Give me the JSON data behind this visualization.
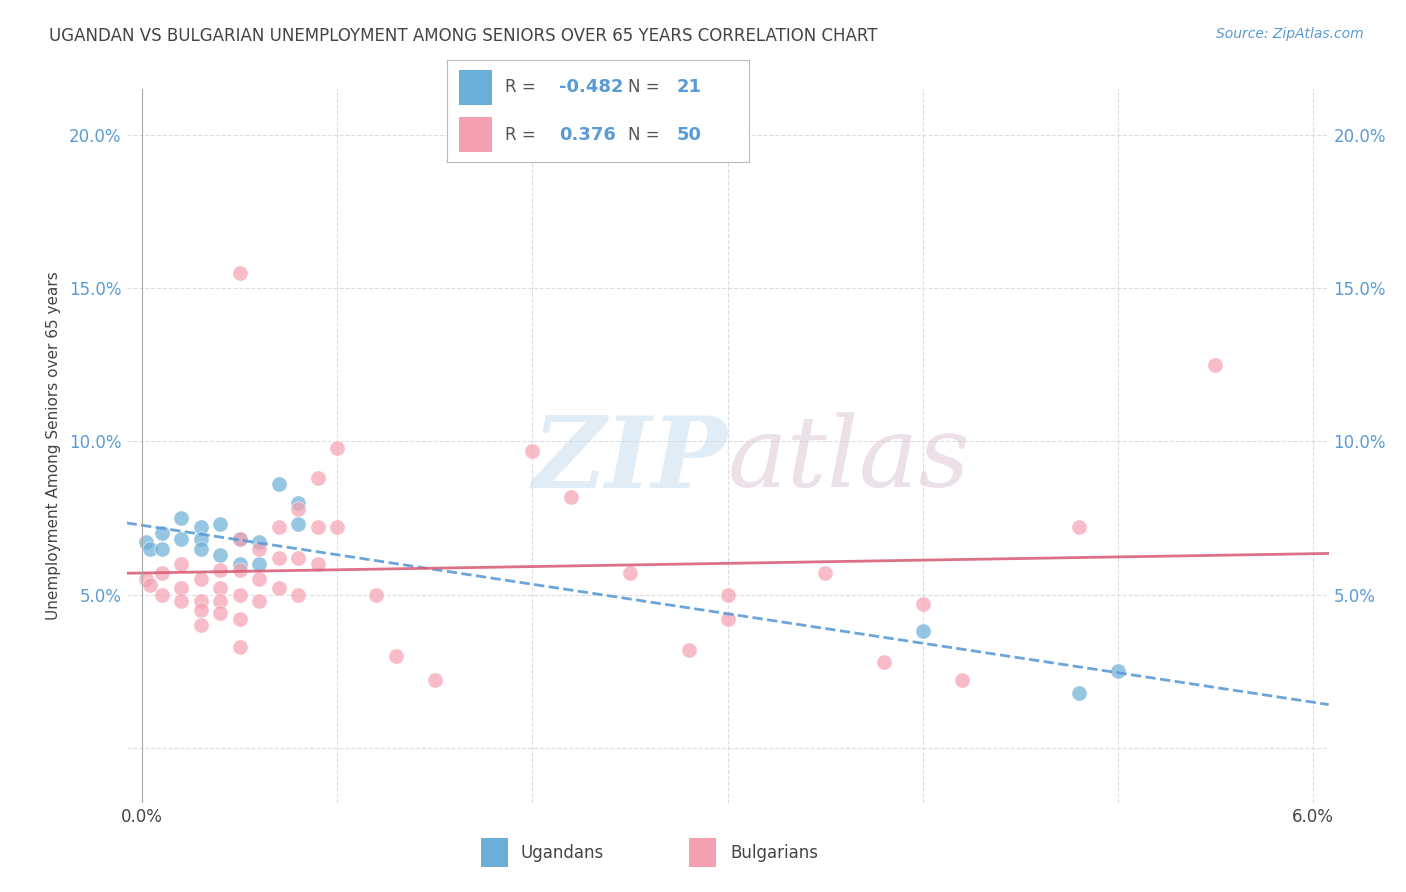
{
  "title": "UGANDAN VS BULGARIAN UNEMPLOYMENT AMONG SENIORS OVER 65 YEARS CORRELATION CHART",
  "source": "Source: ZipAtlas.com",
  "ylabel": "Unemployment Among Seniors over 65 years",
  "xlim": [
    -0.0008,
    0.0608
  ],
  "ylim": [
    -0.018,
    0.215
  ],
  "ugandan_color": "#6baed6",
  "bulgarian_color": "#f4a0b0",
  "ugandan_R": "-0.482",
  "ugandan_N": "21",
  "bulgarian_R": "0.376",
  "bulgarian_N": "50",
  "ugandan_points": [
    [
      0.0002,
      0.067
    ],
    [
      0.0004,
      0.065
    ],
    [
      0.001,
      0.07
    ],
    [
      0.001,
      0.065
    ],
    [
      0.002,
      0.068
    ],
    [
      0.002,
      0.075
    ],
    [
      0.003,
      0.072
    ],
    [
      0.003,
      0.068
    ],
    [
      0.003,
      0.065
    ],
    [
      0.004,
      0.073
    ],
    [
      0.004,
      0.063
    ],
    [
      0.005,
      0.068
    ],
    [
      0.005,
      0.06
    ],
    [
      0.006,
      0.067
    ],
    [
      0.006,
      0.06
    ],
    [
      0.007,
      0.086
    ],
    [
      0.008,
      0.073
    ],
    [
      0.008,
      0.08
    ],
    [
      0.04,
      0.038
    ],
    [
      0.048,
      0.018
    ],
    [
      0.05,
      0.025
    ]
  ],
  "bulgarian_points": [
    [
      0.0002,
      0.055
    ],
    [
      0.0004,
      0.053
    ],
    [
      0.001,
      0.057
    ],
    [
      0.001,
      0.05
    ],
    [
      0.002,
      0.052
    ],
    [
      0.002,
      0.048
    ],
    [
      0.002,
      0.06
    ],
    [
      0.003,
      0.055
    ],
    [
      0.003,
      0.048
    ],
    [
      0.003,
      0.045
    ],
    [
      0.003,
      0.04
    ],
    [
      0.004,
      0.058
    ],
    [
      0.004,
      0.052
    ],
    [
      0.004,
      0.048
    ],
    [
      0.004,
      0.044
    ],
    [
      0.005,
      0.155
    ],
    [
      0.005,
      0.068
    ],
    [
      0.005,
      0.058
    ],
    [
      0.005,
      0.05
    ],
    [
      0.005,
      0.042
    ],
    [
      0.005,
      0.033
    ],
    [
      0.006,
      0.065
    ],
    [
      0.006,
      0.055
    ],
    [
      0.006,
      0.048
    ],
    [
      0.007,
      0.072
    ],
    [
      0.007,
      0.062
    ],
    [
      0.007,
      0.052
    ],
    [
      0.008,
      0.078
    ],
    [
      0.008,
      0.062
    ],
    [
      0.008,
      0.05
    ],
    [
      0.009,
      0.088
    ],
    [
      0.009,
      0.072
    ],
    [
      0.009,
      0.06
    ],
    [
      0.01,
      0.098
    ],
    [
      0.01,
      0.072
    ],
    [
      0.012,
      0.05
    ],
    [
      0.013,
      0.03
    ],
    [
      0.015,
      0.022
    ],
    [
      0.02,
      0.097
    ],
    [
      0.022,
      0.082
    ],
    [
      0.025,
      0.057
    ],
    [
      0.028,
      0.032
    ],
    [
      0.03,
      0.05
    ],
    [
      0.03,
      0.042
    ],
    [
      0.035,
      0.057
    ],
    [
      0.038,
      0.028
    ],
    [
      0.04,
      0.047
    ],
    [
      0.042,
      0.022
    ],
    [
      0.048,
      0.072
    ],
    [
      0.055,
      0.125
    ]
  ],
  "background_color": "#ffffff",
  "grid_color": "#dddddd",
  "text_color": "#444444",
  "blue_color": "#5b9bd5",
  "tick_fontsize": 12,
  "label_fontsize": 11,
  "title_fontsize": 12,
  "source_fontsize": 10
}
